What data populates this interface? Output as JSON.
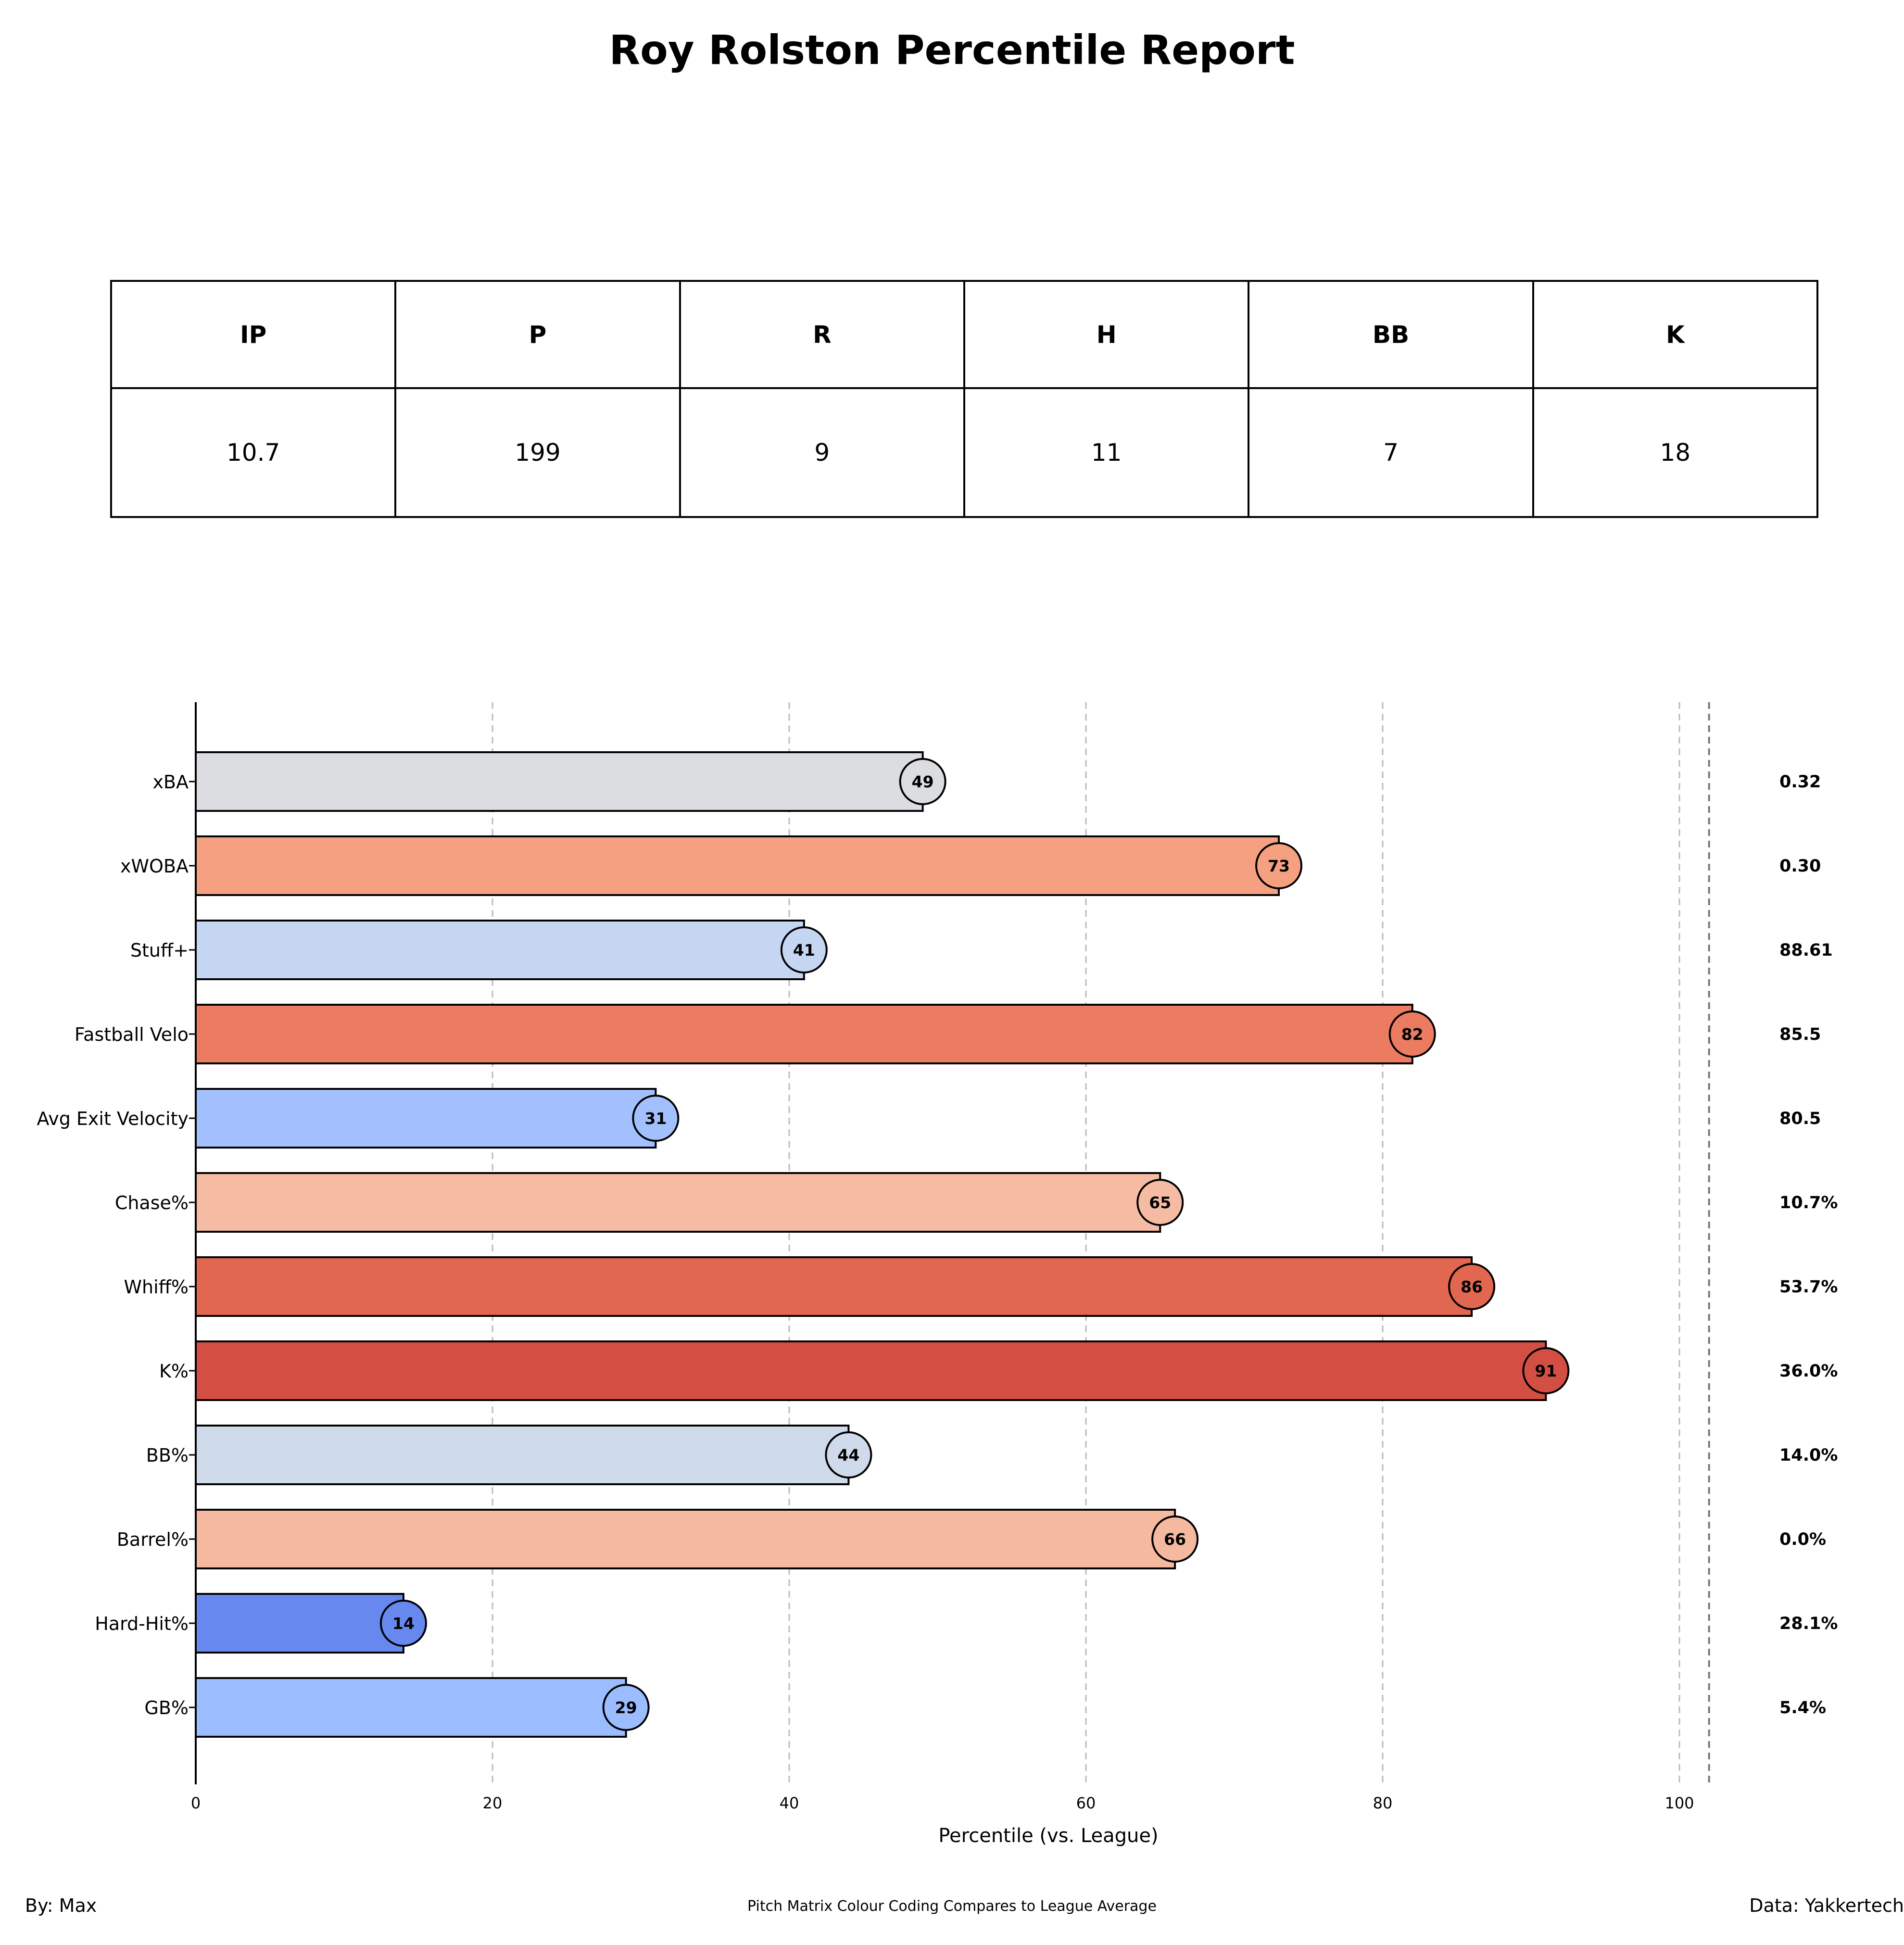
{
  "title": "Roy Rolston Percentile Report",
  "stats_table": {
    "headers": [
      "IP",
      "P",
      "R",
      "H",
      "BB",
      "K"
    ],
    "values": [
      "10.7",
      "199",
      "9",
      "11",
      "7",
      "18"
    ]
  },
  "chart_data": {
    "type": "bar",
    "orientation": "horizontal",
    "title": "",
    "xlabel": "Percentile (vs. League)",
    "ylabel": "",
    "xlim": [
      0,
      110
    ],
    "x_ticks": [
      0,
      20,
      40,
      60,
      80,
      100
    ],
    "grid": "vertical dashed",
    "reference_line": 102,
    "categories": [
      "xBA",
      "xWOBA",
      "Stuff+",
      "Fastball Velo",
      "Avg Exit Velocity",
      "Chase%",
      "Whiff%",
      "K%",
      "BB%",
      "Barrel%",
      "Hard-Hit%",
      "GB%"
    ],
    "values": [
      49,
      73,
      41,
      82,
      31,
      65,
      86,
      91,
      44,
      66,
      14,
      29
    ],
    "stat_values": [
      "0.32",
      "0.30",
      "88.61",
      "85.5",
      "80.5",
      "10.7%",
      "53.7%",
      "36.0%",
      "14.0%",
      "0.0%",
      "28.1%",
      "5.4%"
    ],
    "colors": [
      "#dcdde1",
      "#f5a081",
      "#c5d6f2",
      "#ec7c61",
      "#a3c0fe",
      "#f6bca3",
      "#e16751",
      "#d34f44",
      "#cfdaea",
      "#f4b99e",
      "#6788ee",
      "#9bbcff"
    ]
  },
  "footer": {
    "left": "By: Max",
    "center": "Pitch Matrix Colour Coding Compares to League Average",
    "right": "Data: Yakkertech"
  }
}
